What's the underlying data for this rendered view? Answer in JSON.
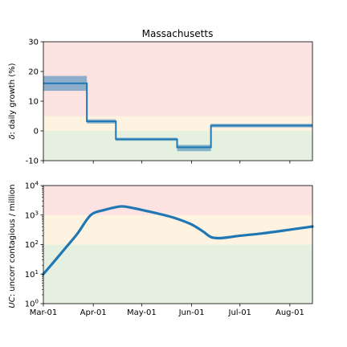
{
  "title": "Massachusetts",
  "chart_data": [
    {
      "type": "line",
      "step": true,
      "ylabel_italic": "δ",
      "ylabel_rest": ": daily growth (%)",
      "ylim": [
        -10,
        30
      ],
      "yticks": [
        -10,
        0,
        10,
        20,
        30
      ],
      "bands": [
        {
          "from": -10,
          "to": 0,
          "color": "#e6f0e0"
        },
        {
          "from": 0,
          "to": 5,
          "color": "#fdf3e0"
        },
        {
          "from": 5,
          "to": 30,
          "color": "#fde2e2"
        }
      ],
      "series": [
        {
          "color": "#1f77b4",
          "steps": [
            {
              "from": "2020-03-01",
              "to": "2020-03-28",
              "value": 16,
              "low": 13.5,
              "high": 18.5
            },
            {
              "from": "2020-03-28",
              "to": "2020-04-15",
              "value": 3.2,
              "low": 2.5,
              "high": 3.9
            },
            {
              "from": "2020-04-15",
              "to": "2020-05-23",
              "value": -2.8,
              "low": -3.3,
              "high": -2.3
            },
            {
              "from": "2020-05-23",
              "to": "2020-06-13",
              "value": -5.5,
              "low": -6.8,
              "high": -4.7
            },
            {
              "from": "2020-06-13",
              "to": "2020-08-15",
              "value": 1.8,
              "low": 1.2,
              "high": 2.4
            }
          ]
        }
      ]
    },
    {
      "type": "line",
      "yscale": "log",
      "ylabel_italic": "UC",
      "ylabel_rest": ": uncorr contagious / million",
      "ylim": [
        1,
        10000
      ],
      "yticks": [
        1,
        10,
        100,
        1000,
        10000
      ],
      "ytick_labels": [
        [
          "10",
          "0"
        ],
        [
          "10",
          "1"
        ],
        [
          "10",
          "2"
        ],
        [
          "10",
          "3"
        ],
        [
          "10",
          "4"
        ]
      ],
      "bands": [
        {
          "from": 1,
          "to": 100,
          "color": "#e6f0e0"
        },
        {
          "from": 100,
          "to": 1000,
          "color": "#fdf3e0"
        },
        {
          "from": 1000,
          "to": 10000,
          "color": "#fde2e2"
        }
      ],
      "xlim": [
        "2020-03-01",
        "2020-08-15"
      ],
      "xticks": [
        "2020-03-01",
        "2020-04-01",
        "2020-05-01",
        "2020-06-01",
        "2020-07-01",
        "2020-08-01"
      ],
      "xtick_labels": [
        "Mar-01",
        "Apr-01",
        "May-01",
        "Jun-01",
        "Jul-01",
        "Aug-01"
      ],
      "series": [
        {
          "color": "#1f77b4",
          "x": [
            "2020-03-01",
            "2020-03-08",
            "2020-03-15",
            "2020-03-22",
            "2020-03-28",
            "2020-04-01",
            "2020-04-08",
            "2020-04-15",
            "2020-04-20",
            "2020-05-01",
            "2020-05-15",
            "2020-05-23",
            "2020-06-01",
            "2020-06-08",
            "2020-06-13",
            "2020-06-18",
            "2020-06-25",
            "2020-07-01",
            "2020-07-15",
            "2020-08-01",
            "2020-08-15"
          ],
          "y": [
            10,
            28,
            80,
            230,
            700,
            1150,
            1500,
            1850,
            1950,
            1500,
            1000,
            750,
            480,
            280,
            180,
            165,
            180,
            200,
            240,
            320,
            410
          ]
        }
      ]
    }
  ]
}
